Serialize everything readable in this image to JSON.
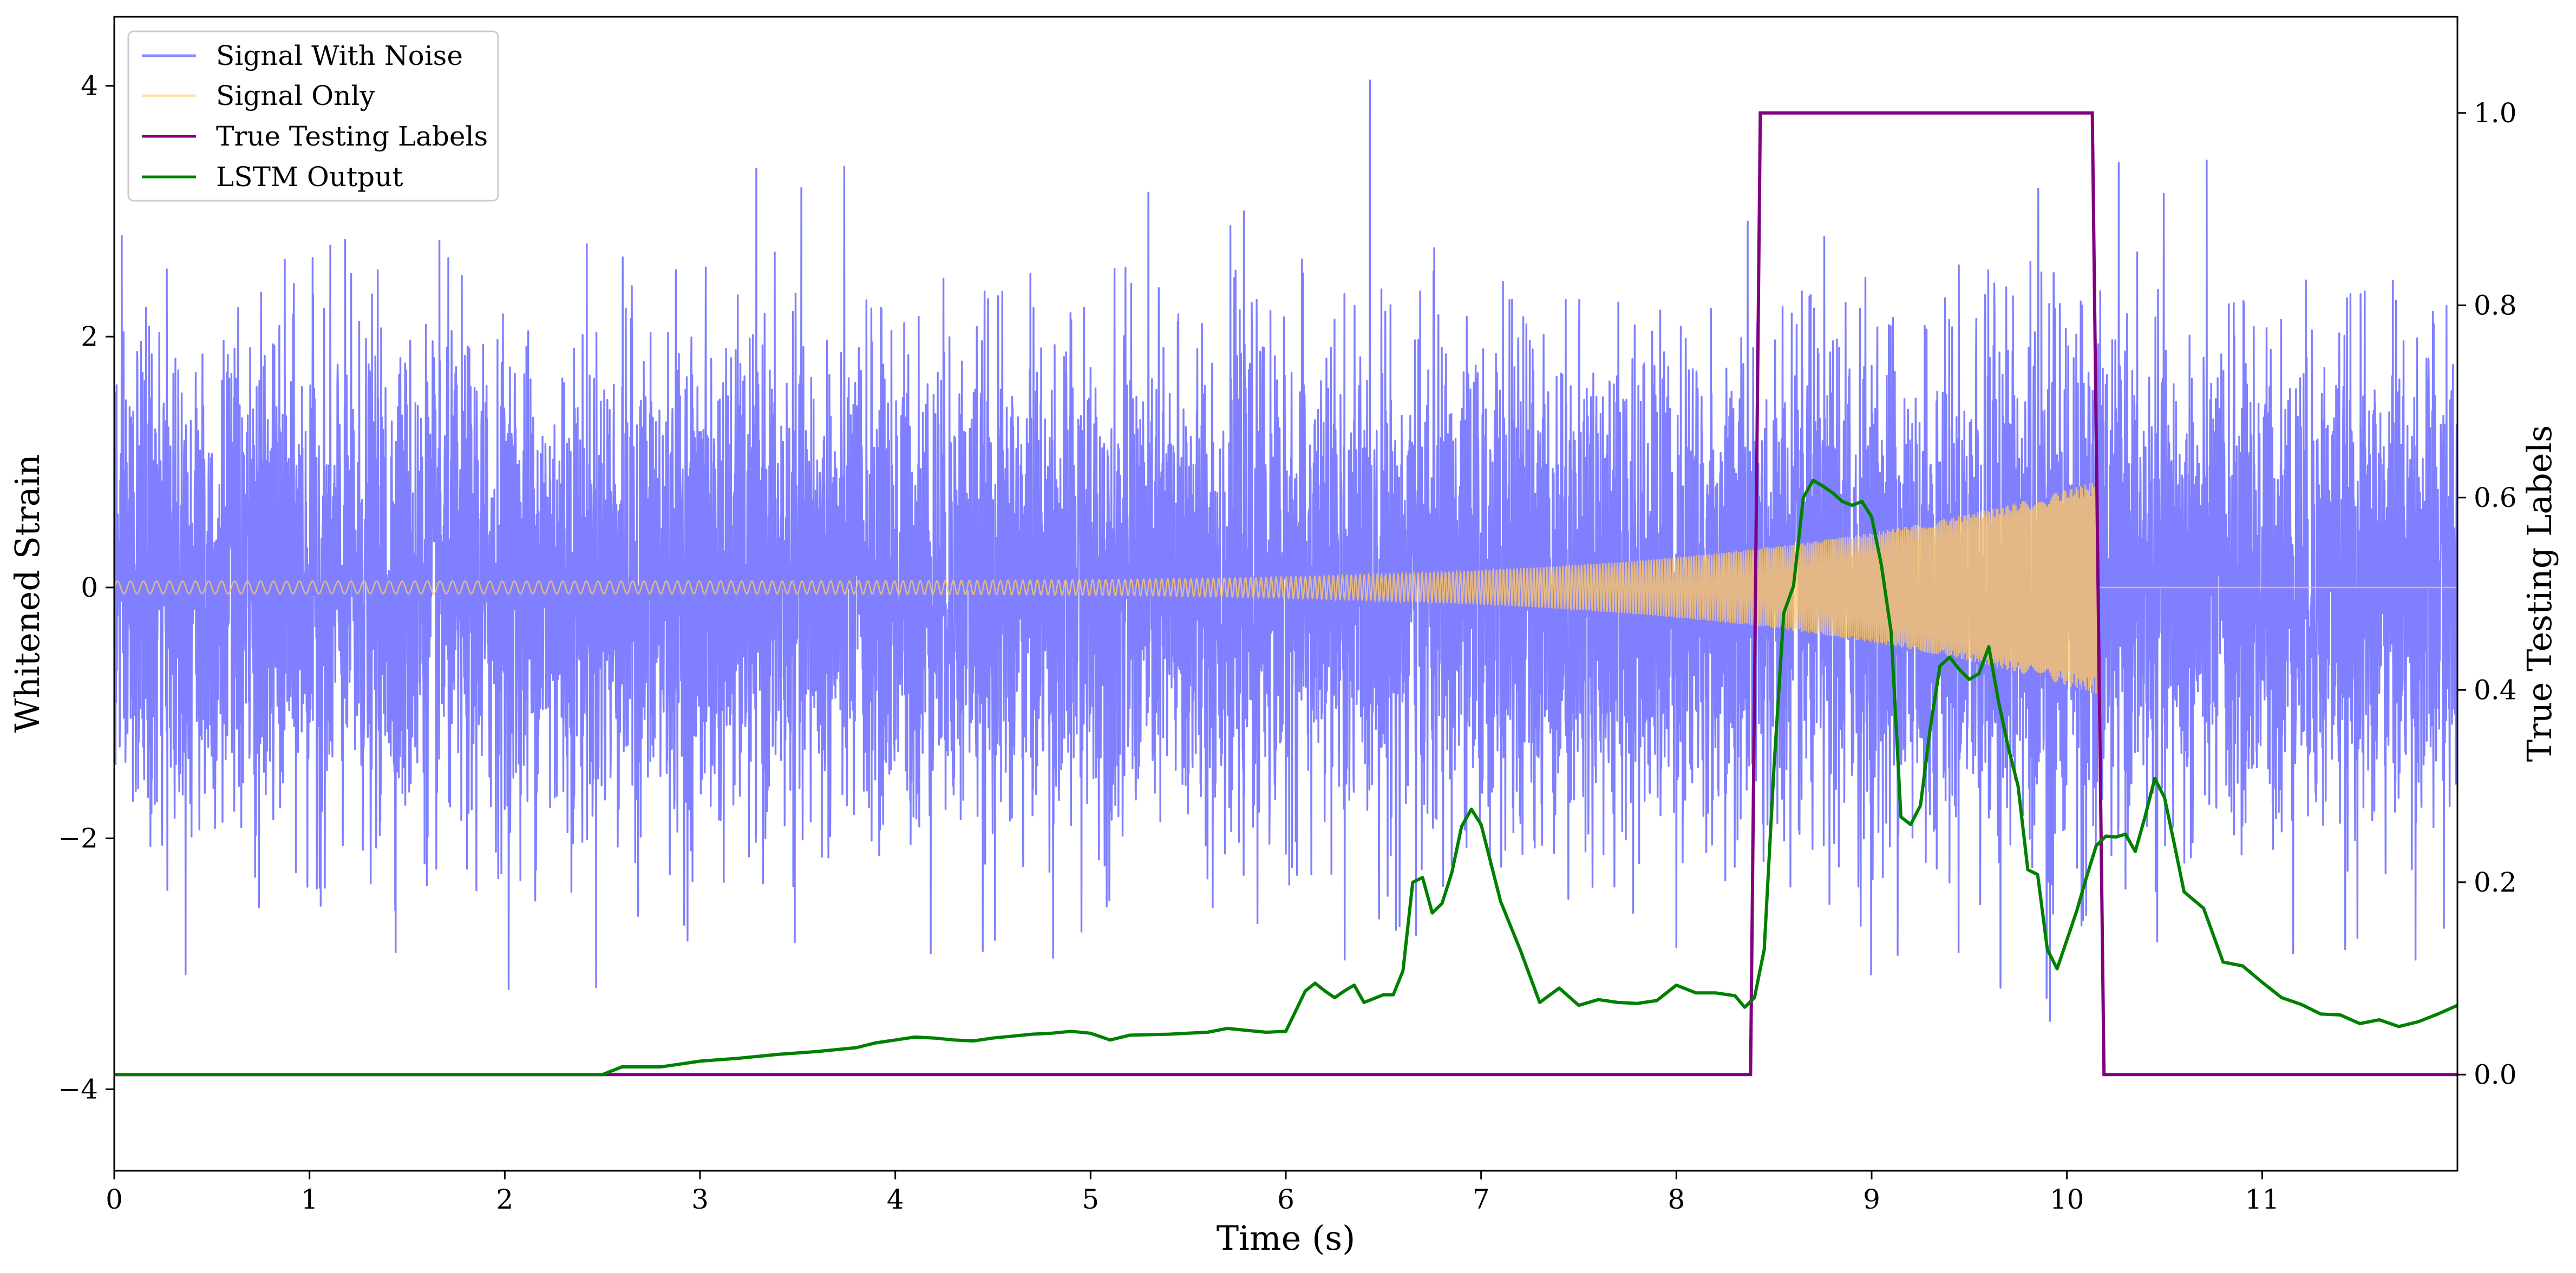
{
  "chart_data": {
    "type": "line",
    "xlabel": "Time (s)",
    "ylabel": "Whitened Strain",
    "ylabel_right": "True Testing Labels",
    "xlim": [
      0,
      12
    ],
    "ylim": [
      -4.65,
      4.55
    ],
    "ylim_right": [
      -0.1,
      1.1
    ],
    "x_ticks": [
      0,
      1,
      2,
      3,
      4,
      5,
      6,
      7,
      8,
      9,
      10,
      11
    ],
    "x_tick_labels": [
      "0",
      "1",
      "2",
      "3",
      "4",
      "5",
      "6",
      "7",
      "8",
      "9",
      "10",
      "11"
    ],
    "y_ticks": [
      -4,
      -2,
      0,
      2,
      4
    ],
    "y_tick_labels": [
      "−4",
      "−2",
      "0",
      "2",
      "4"
    ],
    "y_right_ticks": [
      0.0,
      0.2,
      0.4,
      0.6,
      0.8,
      1.0
    ],
    "y_right_tick_labels": [
      "0.0",
      "0.2",
      "0.4",
      "0.6",
      "0.8",
      "1.0"
    ],
    "grid": false,
    "legend_position": "top-left",
    "series": [
      {
        "name": "Signal With Noise",
        "color": "#7f7fff",
        "axis": "left",
        "noise_std": 0.95,
        "range": [
          -4.27,
          4.15
        ]
      },
      {
        "name": "Signal Only",
        "color": "#ffc864",
        "axis": "left",
        "chirp_start_amplitude": 0.05,
        "chirp_end_amplitude": 0.85,
        "chirp_end_time": 10.15
      },
      {
        "name": "True Testing Labels",
        "color": "#800080",
        "axis": "right",
        "x": [
          0,
          8.38,
          8.43,
          10.13,
          10.19,
          12
        ],
        "y": [
          0,
          0,
          1,
          1,
          0,
          0
        ]
      },
      {
        "name": "LSTM Output",
        "color": "#008000",
        "axis": "right",
        "x": [
          0,
          1,
          2,
          2.5,
          2.6,
          2.8,
          3,
          3.2,
          3.4,
          3.6,
          3.8,
          3.9,
          4.0,
          4.1,
          4.2,
          4.3,
          4.4,
          4.5,
          4.6,
          4.7,
          4.8,
          4.9,
          5.0,
          5.1,
          5.2,
          5.4,
          5.5,
          5.6,
          5.7,
          5.8,
          5.9,
          6.0,
          6.1,
          6.15,
          6.2,
          6.25,
          6.3,
          6.35,
          6.4,
          6.45,
          6.5,
          6.55,
          6.6,
          6.65,
          6.7,
          6.75,
          6.8,
          6.85,
          6.9,
          6.95,
          7.0,
          7.1,
          7.2,
          7.3,
          7.4,
          7.5,
          7.6,
          7.7,
          7.8,
          7.9,
          8.0,
          8.1,
          8.2,
          8.3,
          8.35,
          8.4,
          8.45,
          8.5,
          8.55,
          8.6,
          8.65,
          8.7,
          8.75,
          8.8,
          8.85,
          8.9,
          8.95,
          9.0,
          9.05,
          9.1,
          9.15,
          9.2,
          9.25,
          9.3,
          9.35,
          9.4,
          9.45,
          9.5,
          9.55,
          9.6,
          9.65,
          9.7,
          9.75,
          9.8,
          9.85,
          9.9,
          9.95,
          10.0,
          10.05,
          10.1,
          10.15,
          10.2,
          10.25,
          10.3,
          10.35,
          10.4,
          10.45,
          10.5,
          10.55,
          10.6,
          10.7,
          10.8,
          10.9,
          11.0,
          11.1,
          11.2,
          11.3,
          11.4,
          11.5,
          11.6,
          11.7,
          11.8,
          11.9,
          12.0
        ],
        "y": [
          0.0,
          0.0,
          0.0,
          0.0,
          0.008,
          0.008,
          0.014,
          0.017,
          0.021,
          0.024,
          0.028,
          0.033,
          0.036,
          0.039,
          0.038,
          0.036,
          0.035,
          0.038,
          0.04,
          0.042,
          0.043,
          0.045,
          0.043,
          0.036,
          0.041,
          0.042,
          0.043,
          0.044,
          0.048,
          0.046,
          0.044,
          0.045,
          0.087,
          0.095,
          0.087,
          0.08,
          0.087,
          0.093,
          0.075,
          0.079,
          0.083,
          0.083,
          0.108,
          0.2,
          0.205,
          0.168,
          0.178,
          0.21,
          0.258,
          0.276,
          0.26,
          0.18,
          0.13,
          0.075,
          0.09,
          0.072,
          0.078,
          0.075,
          0.074,
          0.077,
          0.093,
          0.085,
          0.085,
          0.082,
          0.07,
          0.08,
          0.13,
          0.32,
          0.48,
          0.508,
          0.6,
          0.618,
          0.612,
          0.605,
          0.596,
          0.592,
          0.596,
          0.58,
          0.53,
          0.46,
          0.268,
          0.26,
          0.28,
          0.36,
          0.425,
          0.434,
          0.421,
          0.411,
          0.417,
          0.445,
          0.388,
          0.34,
          0.3,
          0.213,
          0.208,
          0.13,
          0.11,
          0.14,
          0.17,
          0.205,
          0.238,
          0.248,
          0.247,
          0.25,
          0.232,
          0.268,
          0.308,
          0.288,
          0.24,
          0.19,
          0.173,
          0.117,
          0.113,
          0.096,
          0.08,
          0.073,
          0.063,
          0.062,
          0.053,
          0.057,
          0.05,
          0.055,
          0.063,
          0.072
        ]
      }
    ]
  }
}
